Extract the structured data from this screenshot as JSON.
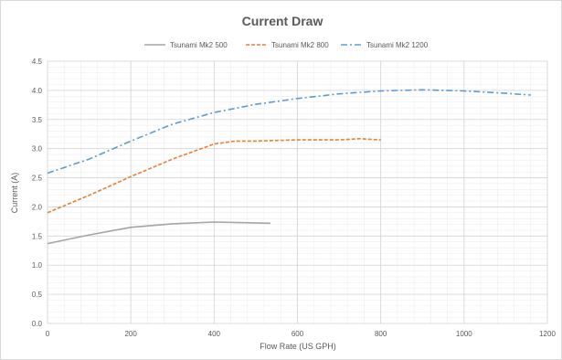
{
  "chart_data": {
    "type": "line",
    "title": "Current Draw",
    "xlabel": "Flow Rate (US GPH)",
    "ylabel": "Current (A)",
    "xlim": [
      0,
      1200
    ],
    "ylim": [
      0,
      4.5
    ],
    "x_ticks": [
      "0",
      "200",
      "400",
      "600",
      "800",
      "1000",
      "1200"
    ],
    "y_ticks": [
      "0.0",
      "0.5",
      "1.0",
      "1.5",
      "2.0",
      "2.5",
      "3.0",
      "3.5",
      "4.0",
      "4.5"
    ],
    "grid": true,
    "legend_position": "top",
    "series": [
      {
        "name": "Tsunami Mk2 500",
        "color": "#a5a5a5",
        "dash": "solid",
        "x": [
          0,
          100,
          200,
          300,
          400,
          535
        ],
        "y": [
          1.37,
          1.52,
          1.65,
          1.71,
          1.74,
          1.72
        ]
      },
      {
        "name": "Tsunami Mk2 800",
        "color": "#ed7d31",
        "dash": "dashed",
        "x": [
          0,
          100,
          200,
          300,
          400,
          450,
          500,
          600,
          700,
          750,
          800
        ],
        "y": [
          1.9,
          2.2,
          2.52,
          2.82,
          3.08,
          3.13,
          3.13,
          3.15,
          3.15,
          3.17,
          3.15
        ]
      },
      {
        "name": "Tsunami Mk2 1200",
        "color": "#5b9bd5",
        "dash": "dashdot",
        "x": [
          0,
          100,
          200,
          300,
          400,
          500,
          600,
          700,
          800,
          900,
          1000,
          1100,
          1160
        ],
        "y": [
          2.58,
          2.82,
          3.13,
          3.42,
          3.62,
          3.76,
          3.86,
          3.94,
          3.99,
          4.01,
          3.99,
          3.95,
          3.92
        ]
      }
    ]
  }
}
